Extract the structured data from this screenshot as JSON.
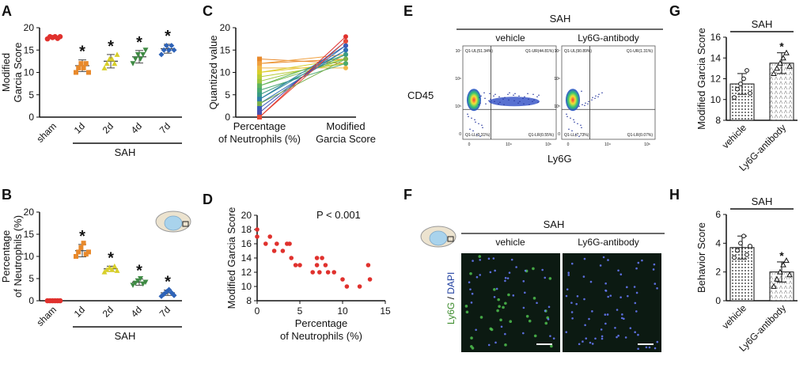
{
  "colors": {
    "red": "#e0312d",
    "orange": "#e8892b",
    "yellow": "#d8cf2a",
    "green": "#3f8a44",
    "blue": "#2f64b8",
    "purple": "#6b4fa0",
    "flow_bg": "#ffffff",
    "micro_bg": "#0c1a12"
  },
  "panel_letters": {
    "A": "A",
    "B": "B",
    "C": "C",
    "D": "D",
    "E": "E",
    "F": "F",
    "G": "G",
    "H": "H"
  },
  "chart_data": [
    {
      "id": "A",
      "type": "scatter",
      "ylabel": "Modified Garcia Score",
      "ylim": [
        0,
        20
      ],
      "yticks": [
        0,
        5,
        10,
        15,
        20
      ],
      "categories": [
        "sham",
        "1d",
        "2d",
        "4d",
        "7d"
      ],
      "group_label": "SAH",
      "means": [
        17.8,
        11.5,
        12.5,
        13.5,
        15.3
      ],
      "sd": [
        0.2,
        1.3,
        1.5,
        1.4,
        1.0
      ],
      "points": [
        [
          17.5,
          18,
          17.8,
          18,
          17.6,
          18
        ],
        [
          10,
          11,
          12,
          11,
          12,
          10
        ],
        [
          11,
          12,
          13,
          13,
          12,
          14
        ],
        [
          12,
          13,
          14,
          13,
          14,
          15
        ],
        [
          14,
          15,
          16,
          15,
          16,
          15
        ]
      ],
      "significance": [
        "",
        "*",
        "*",
        "*",
        "*"
      ]
    },
    {
      "id": "B",
      "type": "scatter",
      "ylabel": "Percentage of Neutrophils (%)",
      "ylim": [
        0,
        20
      ],
      "yticks": [
        0,
        5,
        10,
        15,
        20
      ],
      "categories": [
        "sham",
        "1d",
        "2d",
        "4d",
        "7d"
      ],
      "group_label": "SAH",
      "means": [
        0,
        11.3,
        7.2,
        4.2,
        1.8
      ],
      "sd": [
        0.1,
        1.4,
        0.6,
        0.7,
        0.6
      ],
      "points": [
        [
          0,
          0,
          0,
          0,
          0,
          0
        ],
        [
          10,
          11,
          12,
          13,
          10.5,
          11
        ],
        [
          6.5,
          7,
          7.5,
          7,
          7.8,
          6.8
        ],
        [
          3.5,
          4,
          4.5,
          5,
          3.8,
          4.2
        ],
        [
          1,
          1.5,
          2,
          2.5,
          1.8,
          1.2
        ]
      ],
      "significance": [
        "",
        "*",
        "*",
        "*",
        "*"
      ]
    },
    {
      "id": "C",
      "type": "line",
      "ylabel": "Quantized value",
      "ylim": [
        0,
        20
      ],
      "yticks": [
        0,
        5,
        10,
        15,
        20
      ],
      "categories": [
        "Percentage of Neutrophils (%)",
        "Modified Garcia Score"
      ],
      "series": [
        {
          "values": [
            13,
            12
          ]
        },
        {
          "values": [
            12,
            13
          ]
        },
        {
          "values": [
            12,
            14
          ]
        },
        {
          "values": [
            11,
            11
          ]
        },
        {
          "values": [
            10,
            12
          ]
        },
        {
          "values": [
            10,
            13
          ]
        },
        {
          "values": [
            9,
            12
          ]
        },
        {
          "values": [
            8,
            13
          ]
        },
        {
          "values": [
            7,
            13
          ]
        },
        {
          "values": [
            7,
            14
          ]
        },
        {
          "values": [
            6,
            12
          ]
        },
        {
          "values": [
            5,
            14
          ]
        },
        {
          "values": [
            4,
            15
          ]
        },
        {
          "values": [
            4,
            16
          ]
        },
        {
          "values": [
            3,
            15
          ]
        },
        {
          "values": [
            2,
            16
          ]
        },
        {
          "values": [
            1,
            17
          ]
        },
        {
          "values": [
            0,
            18
          ]
        },
        {
          "values": [
            0,
            17
          ]
        },
        {
          "values": [
            3,
            13
          ]
        }
      ]
    },
    {
      "id": "D",
      "type": "scatter",
      "xlabel": "Percentage of Neutrophils (%)",
      "ylabel": "Modified Garcia Score",
      "xlim": [
        0,
        15
      ],
      "ylim": [
        8,
        20
      ],
      "xticks": [
        0,
        5,
        10,
        15
      ],
      "yticks": [
        8,
        10,
        12,
        14,
        16,
        18,
        20
      ],
      "annotation": "P < 0.001",
      "x": [
        0,
        0,
        1,
        1.5,
        2,
        2.3,
        3,
        3.5,
        3.8,
        4,
        4.5,
        5,
        6.5,
        7,
        7,
        7.3,
        7.6,
        8,
        8.3,
        9,
        10,
        10.5,
        12,
        13,
        13.2
      ],
      "y": [
        18,
        17,
        16,
        17,
        15,
        16,
        15,
        16,
        16,
        14,
        13,
        13,
        12,
        13,
        14,
        12,
        14,
        13,
        12,
        12,
        11,
        10,
        10,
        13,
        11
      ]
    },
    {
      "id": "G",
      "type": "bar",
      "ylabel": "Modified Garcia Score",
      "ylim": [
        8,
        16
      ],
      "yticks": [
        8,
        10,
        12,
        14,
        16
      ],
      "categories": [
        "vehicle",
        "Ly6G-antibody"
      ],
      "values": [
        11.5,
        13.5
      ],
      "sd": [
        1.0,
        1.0
      ],
      "points": [
        [
          10.2,
          11,
          11.5,
          12,
          12.8,
          10.6
        ],
        [
          12.5,
          13,
          13.5,
          14,
          14.5,
          13.2
        ]
      ],
      "group_label": "SAH",
      "significance": [
        "",
        "*"
      ]
    },
    {
      "id": "H",
      "type": "bar",
      "ylabel": "Behavior Score",
      "ylim": [
        0,
        6
      ],
      "yticks": [
        0,
        2,
        4,
        6
      ],
      "categories": [
        "vehicle",
        "Ly6G-antibody"
      ],
      "values": [
        3.7,
        2.0
      ],
      "sd": [
        0.8,
        0.7
      ],
      "points": [
        [
          3,
          3.5,
          4,
          4.5,
          3.2,
          3.8
        ],
        [
          1,
          1.5,
          2,
          2.5,
          2.8,
          1.8
        ]
      ],
      "group_label": "SAH",
      "significance": [
        "",
        "*"
      ]
    }
  ],
  "flow": {
    "header": "SAH",
    "columns": [
      "vehicle",
      "Ly6G-antibody"
    ],
    "ylabel": "CD45",
    "xlabel": "Ly6G",
    "quadrants": [
      {
        "UL": "Q1-UL(51.34%)",
        "UR": "Q1-UR(44.81%)",
        "LL": "Q1-LL(3.31%)",
        "LR": "Q1-LR(0.55%)"
      },
      {
        "UL": "Q1-UL(90.89%)",
        "UR": "Q1-UR(1.31%)",
        "LL": "Q1-LL(7.73%)",
        "LR": "Q1-LR(0.07%)"
      }
    ],
    "xticks": [
      "0",
      "10⁴",
      "10⁶"
    ],
    "yticks": [
      "10⁷",
      "10⁶",
      "10⁵",
      "0"
    ]
  },
  "micro": {
    "header": "SAH",
    "columns": [
      "vehicle",
      "Ly6G-antibody"
    ],
    "ylabel_a": "Ly6G",
    "ylabel_sep": " / ",
    "ylabel_b": "DAPI"
  }
}
